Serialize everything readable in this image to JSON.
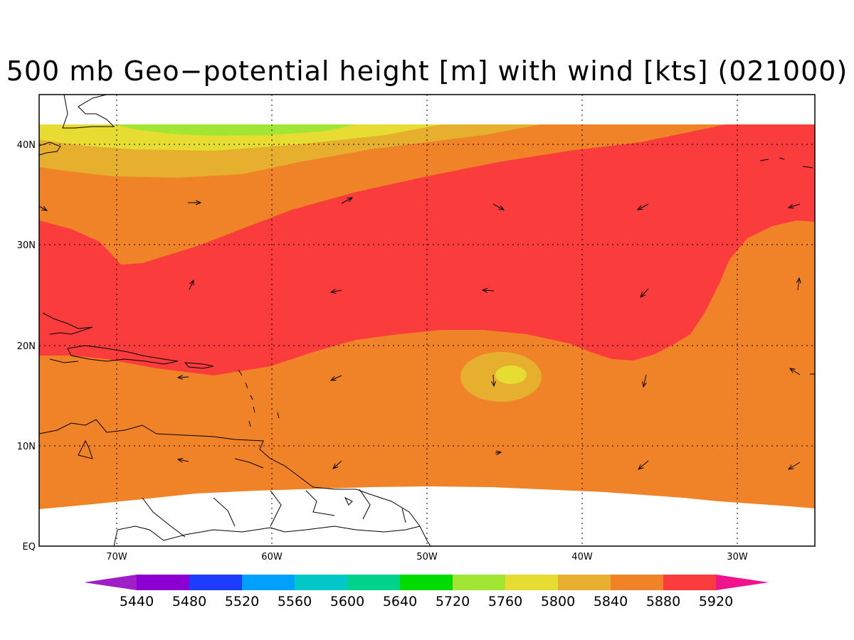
{
  "title": "500 mb Geo−potential height [m] with wind [kts] (021000)",
  "lat_labels": [
    "EQ",
    "10N",
    "20N",
    "30N",
    "40N"
  ],
  "lon_labels": [
    "70W",
    "60W",
    "50W",
    "40W",
    "30W"
  ],
  "colorbar": {
    "labels": [
      "5440",
      "5480",
      "5520",
      "5560",
      "5600",
      "5640",
      "5720",
      "5760",
      "5800",
      "5840",
      "5880",
      "5920"
    ],
    "colors": [
      "#8c00d4",
      "#1e3cff",
      "#00a0ff",
      "#00c8c8",
      "#00d28c",
      "#00dc00",
      "#a0e632",
      "#e6dc32",
      "#e6af2d",
      "#f08228",
      "#fa3c3c",
      "#f0148c"
    ],
    "left_arrow_color": "#a01ec8",
    "right_arrow_color": "#f0148c"
  },
  "fill_colors": {
    "red": "#fa3c3c",
    "orange": "#f08228",
    "gold": "#e6af2d",
    "yellow": "#e6dc32",
    "lime": "#a0e632"
  }
}
